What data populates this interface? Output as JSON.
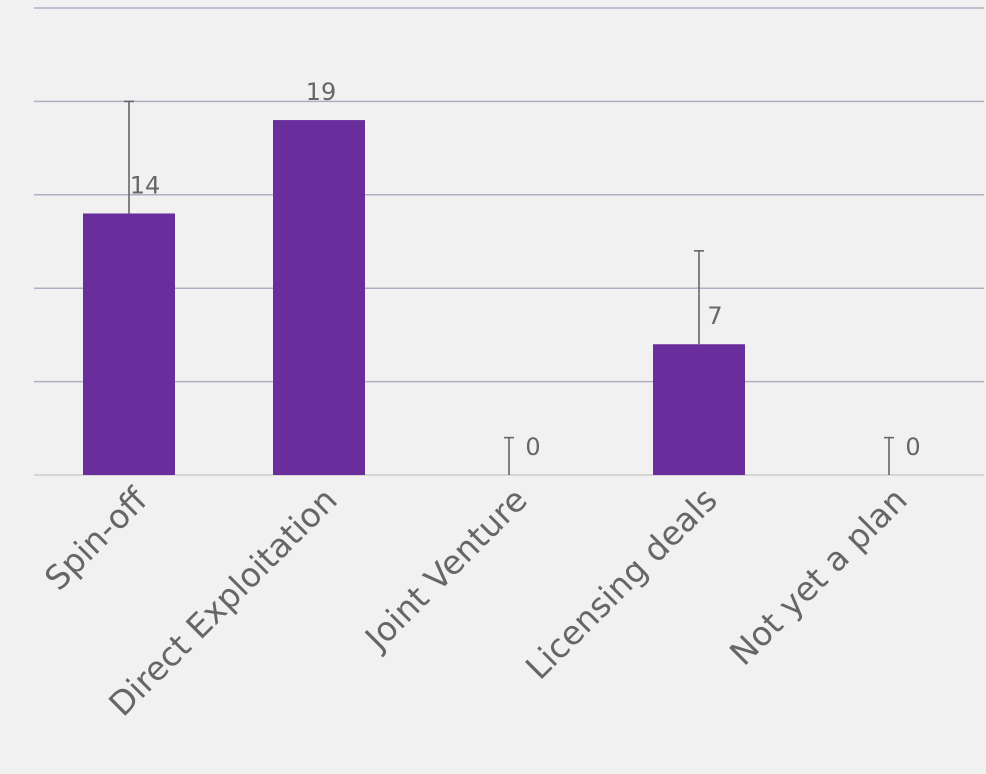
{
  "chart_data": {
    "type": "bar",
    "categories": [
      "Spin-off",
      "Direct Exploitation",
      "Joint Venture",
      "Licensing deals",
      "Not yet a plan"
    ],
    "values": [
      14,
      19,
      0,
      7,
      0
    ],
    "error_upper": [
      20,
      19,
      2,
      12,
      2
    ],
    "data_labels": [
      "14",
      "19",
      "0",
      "7",
      "0"
    ],
    "ylim": [
      0,
      25
    ],
    "gridlines": [
      0,
      5,
      10,
      15,
      20,
      25
    ],
    "grid": true,
    "colors": {
      "bar": "#6a2d9c",
      "gridline": "#b3adc4",
      "text": "#666666",
      "background": "#f1f1f1"
    }
  }
}
